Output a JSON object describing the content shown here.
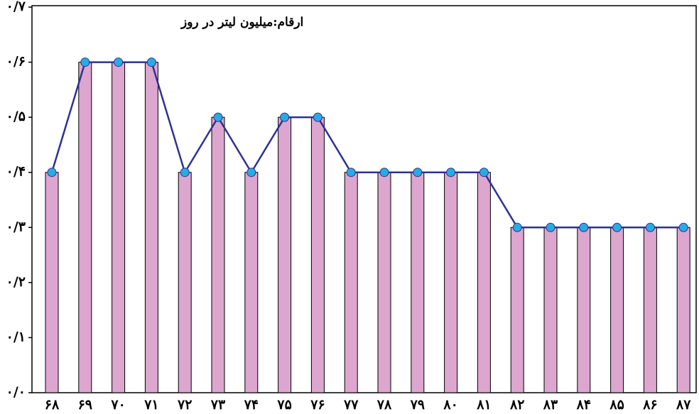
{
  "chart_data": {
    "type": "bar",
    "title": "ارقام:میلیون لیتر در روز",
    "categories": [
      "۶۸",
      "۶۹",
      "۷۰",
      "۷۱",
      "۷۲",
      "۷۳",
      "۷۴",
      "۷۵",
      "۷۶",
      "۷۷",
      "۷۸",
      "۷۹",
      "۸۰",
      "۸۱",
      "۸۲",
      "۸۳",
      "۸۴",
      "۸۵",
      "۸۶",
      "۸۷"
    ],
    "values": [
      0.4,
      0.6,
      0.6,
      0.6,
      0.4,
      0.5,
      0.4,
      0.5,
      0.5,
      0.4,
      0.4,
      0.4,
      0.4,
      0.4,
      0.3,
      0.3,
      0.3,
      0.3,
      0.3,
      0.3
    ],
    "color": "#dca6cf",
    "line_color": "#2e3192",
    "marker_color": "#29abe2",
    "ylim": [
      0,
      0.7
    ],
    "yticks": [
      {
        "value": 0,
        "label": "۰/۰"
      },
      {
        "value": 0.1,
        "label": "۰/۱"
      },
      {
        "value": 0.2,
        "label": "۰/۲"
      },
      {
        "value": 0.3,
        "label": "۰/۳"
      },
      {
        "value": 0.4,
        "label": "۰/۴"
      },
      {
        "value": 0.5,
        "label": "۰/۵"
      },
      {
        "value": 0.6,
        "label": "۰/۶"
      },
      {
        "value": 0.7,
        "label": "۰/۷"
      }
    ]
  }
}
